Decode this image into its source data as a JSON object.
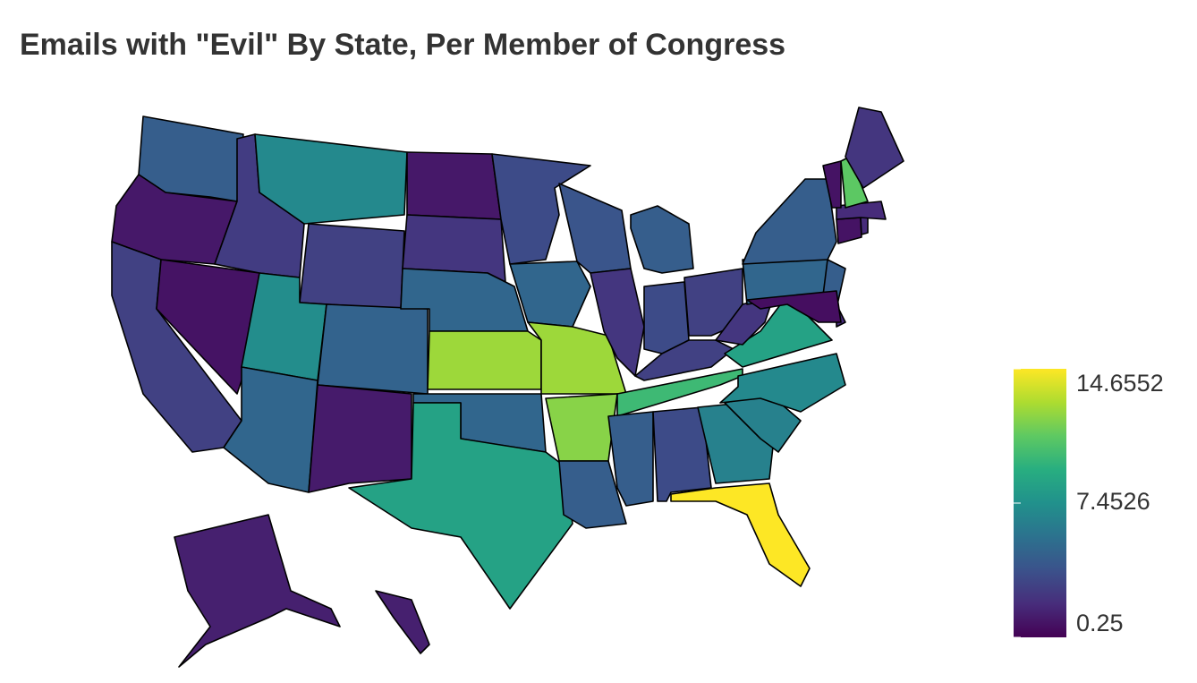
{
  "chart_data": {
    "type": "choropleth",
    "title": "Emails with \"Evil\" By State, Per Member of Congress",
    "values": [
      4.5,
      1.2,
      3.0,
      1.0,
      2.8,
      7.0,
      3.0,
      7.2,
      5.0,
      4.8,
      1.3,
      1.2,
      2.5,
      5.0,
      12.5,
      5.0,
      8.5,
      3.5,
      5.0,
      12.5,
      12.0,
      4.5,
      4.0,
      2.5,
      4.5,
      3.5,
      3.0,
      3.0,
      10.0,
      4.5,
      3.5,
      6.5,
      14.6552,
      6.5,
      7.0,
      8.5,
      2.5,
      5.0,
      4.5,
      4.5,
      2.0,
      0.8,
      1.0,
      2.0,
      2.0,
      1.0,
      11.0,
      2.5,
      1.5,
      1.5
    ],
    "clim": [
      0.25,
      14.6552
    ],
    "cticks": [
      0.25,
      7.4526,
      14.6552
    ],
    "colorscale": [
      "#440154",
      "#472d7b",
      "#3b528b",
      "#2c728e",
      "#21918c",
      "#28ae80",
      "#5ec962",
      "#addc30",
      "#fde725"
    ]
  }
}
